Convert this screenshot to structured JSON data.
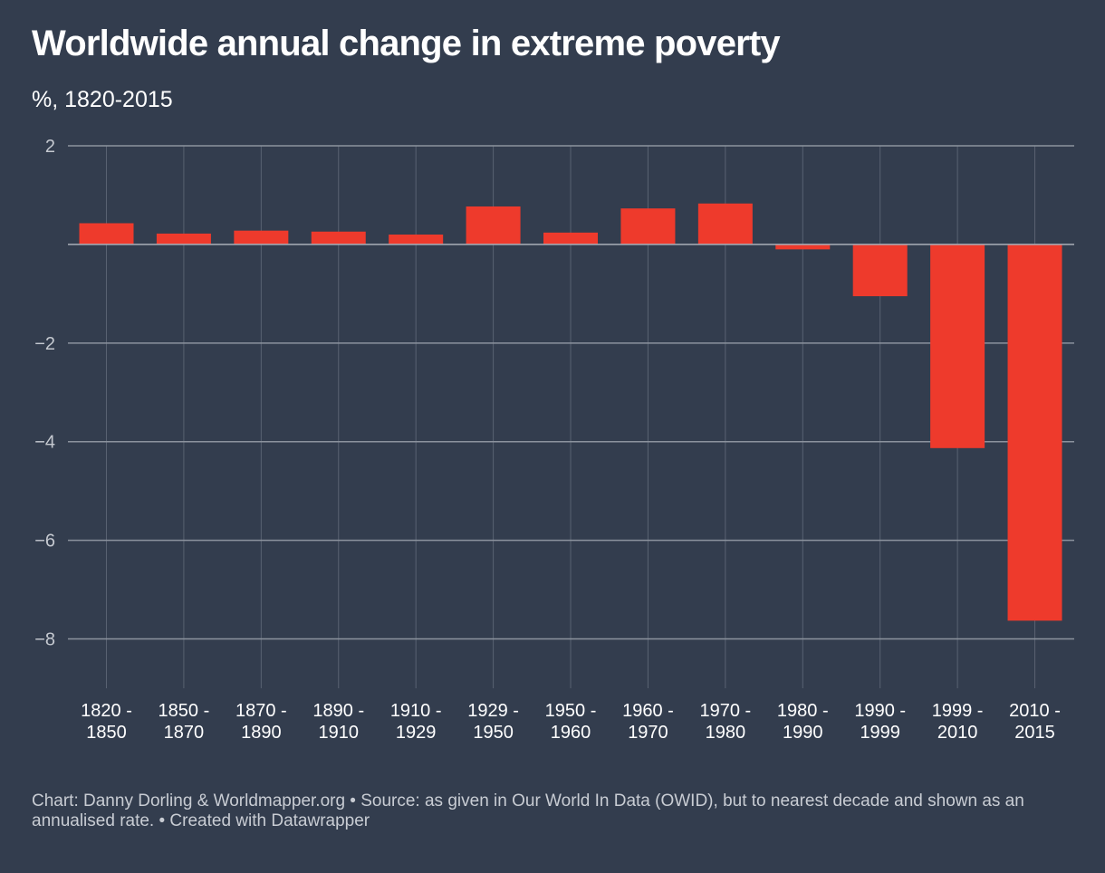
{
  "chart_data": {
    "type": "bar",
    "title": "Worldwide annual change in extreme poverty",
    "subtitle": "%, 1820-2015",
    "categories": [
      [
        "1820 -",
        "1850"
      ],
      [
        "1850 -",
        "1870"
      ],
      [
        "1870 -",
        "1890"
      ],
      [
        "1890 -",
        "1910"
      ],
      [
        "1910 -",
        "1929"
      ],
      [
        "1929 -",
        "1950"
      ],
      [
        "1950 -",
        "1960"
      ],
      [
        "1960 -",
        "1970"
      ],
      [
        "1970 -",
        "1980"
      ],
      [
        "1980 -",
        "1990"
      ],
      [
        "1990 -",
        "1999"
      ],
      [
        "1999 -",
        "2010"
      ],
      [
        "2010 -",
        "2015"
      ]
    ],
    "values": [
      0.43,
      0.22,
      0.28,
      0.26,
      0.2,
      0.77,
      0.24,
      0.73,
      0.83,
      -0.1,
      -1.05,
      -4.13,
      -7.63
    ],
    "ylim": [
      -9,
      2
    ],
    "yticks": [
      2,
      0,
      -2,
      -4,
      -6,
      -8
    ],
    "ytick_labels": [
      "2",
      "",
      "−2",
      "−4",
      "−6",
      "−8"
    ],
    "bar_color": "#ee3a2c",
    "grid": true,
    "xlabel": "",
    "ylabel": ""
  },
  "footer": {
    "text": "Chart: Danny Dorling & Worldmapper.org • Source: as given in Our World In Data (OWID), but to nearest decade and shown as an annualised rate. • Created with Datawrapper"
  }
}
